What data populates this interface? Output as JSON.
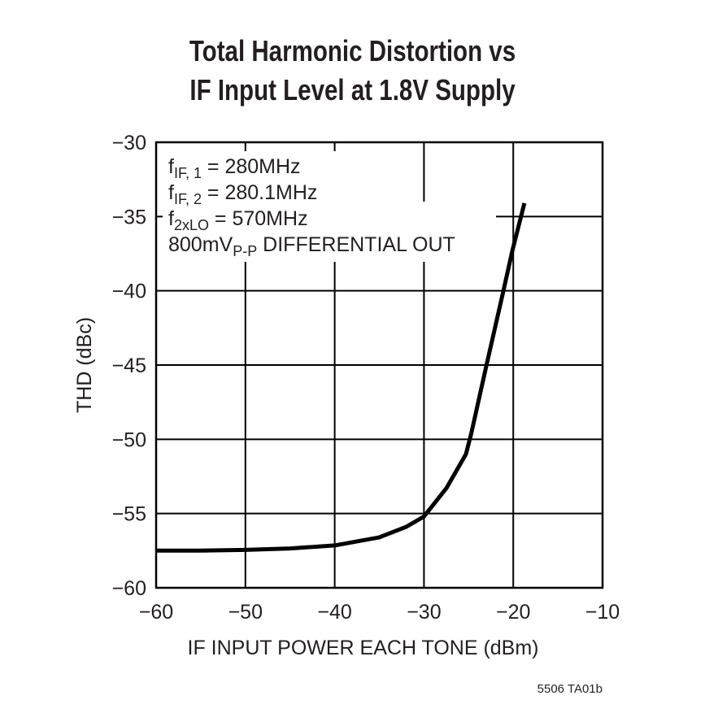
{
  "chart_data": {
    "type": "line",
    "title": [
      "Total Harmonic Distortion vs",
      "IF Input Level at 1.8V Supply"
    ],
    "xlabel": "IF INPUT POWER EACH TONE (dBm)",
    "ylabel": "THD (dBc)",
    "xlim": [
      -60,
      -10
    ],
    "ylim": [
      -60,
      -30
    ],
    "xticks": [
      -60,
      -50,
      -40,
      -30,
      -20,
      -10
    ],
    "yticks": [
      -30,
      -35,
      -40,
      -45,
      -50,
      -55,
      -60
    ],
    "xtick_labels": [
      "−60",
      "−50",
      "−40",
      "−30",
      "−20",
      "−10"
    ],
    "ytick_labels": [
      "−30",
      "−35",
      "−40",
      "−45",
      "−50",
      "−55",
      "−60"
    ],
    "grid": true,
    "annotations": [
      {
        "main": "f",
        "sub": "IF, 1",
        "rest": " = 280MHz"
      },
      {
        "main": "f",
        "sub": "IF, 2",
        "rest": " = 280.1MHz"
      },
      {
        "main": "f",
        "sub": "2xLO",
        "rest": " = 570MHz"
      },
      {
        "main": "800mV",
        "sub": "P-P",
        "rest": " DIFFERENTIAL OUT"
      }
    ],
    "footnote": "5506 TA01b",
    "series": [
      {
        "color": "#000000",
        "x": [
          -60,
          -55,
          -50,
          -45,
          -40,
          -35,
          -32,
          -30,
          -27.5,
          -25.3,
          -24.7,
          -23.0,
          -21.1,
          -20.1,
          -18.75
        ],
        "y": [
          -57.5,
          -57.5,
          -57.45,
          -57.35,
          -57.15,
          -56.6,
          -55.9,
          -55.2,
          -53.3,
          -51.0,
          -49.6,
          -45.0,
          -40.0,
          -37.3,
          -34.1
        ]
      }
    ]
  }
}
